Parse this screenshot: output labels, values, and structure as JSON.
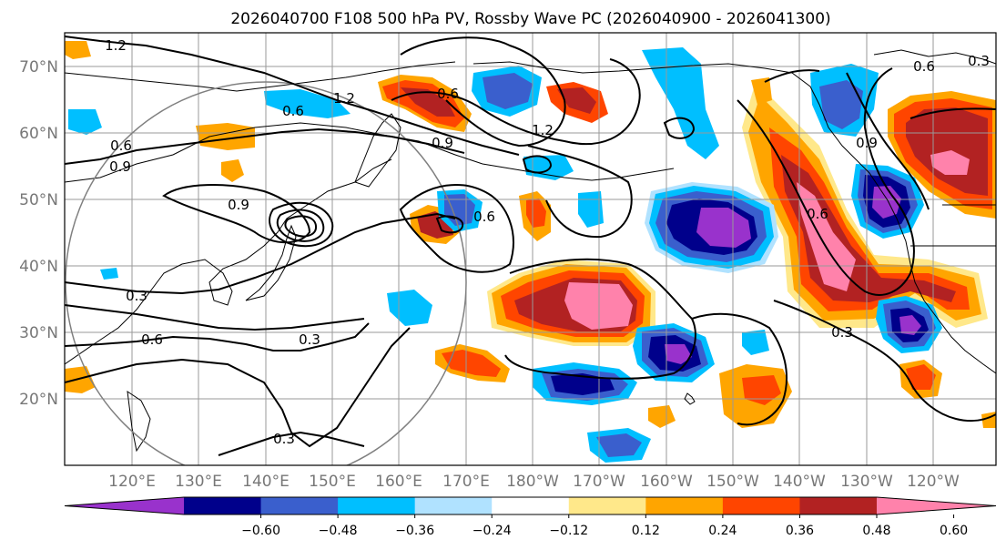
{
  "title": "2026040700 F108 500 hPa PV, Rossby Wave PC (2026040900 - 2026041300)",
  "map": {
    "lat_labels": [
      "70°N",
      "60°N",
      "50°N",
      "40°N",
      "30°N",
      "20°N"
    ],
    "lon_labels": [
      "120°E",
      "130°E",
      "140°E",
      "150°E",
      "160°E",
      "170°E",
      "180°W",
      "170°W",
      "160°W",
      "150°W",
      "140°W",
      "130°W",
      "120°W"
    ],
    "contour_labels": [
      "1.2",
      "0.6",
      "1.2",
      "0.6",
      "0.6",
      "0.9",
      "0.9",
      "0.6",
      "0.6",
      "0.3",
      "0.6",
      "0.3",
      "0.3",
      "0.3",
      "1.2",
      "0.9",
      "0.6",
      "0.3",
      "0.9"
    ]
  },
  "colorbar": {
    "tick_labels": [
      "−0.60",
      "−0.48",
      "−0.36",
      "−0.24",
      "−0.12",
      "0.12",
      "0.24",
      "0.36",
      "0.48",
      "0.60"
    ],
    "colors": [
      "#9932cc",
      "#00008b",
      "#3a5fcd",
      "#00bfff",
      "#b0e2ff",
      "#ffffff",
      "#ffe88a",
      "#ffa500",
      "#ff4500",
      "#b22222",
      "#ff82ab"
    ]
  }
}
